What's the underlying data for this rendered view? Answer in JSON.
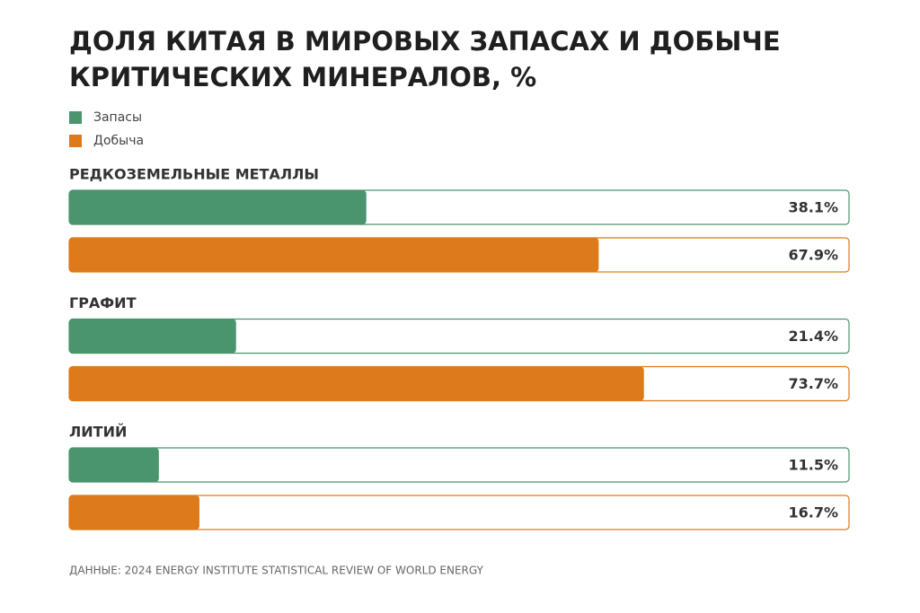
{
  "chart_data": {
    "type": "bar",
    "orientation": "horizontal",
    "title": [
      "ДОЛЯ КИТАЯ В МИРОВЫХ ЗАПАСАХ И ДОБЫЧЕ",
      "КРИТИЧЕСКИХ МИНЕРАЛОВ, %"
    ],
    "categories": [
      "РЕДКОЗЕМЕЛЬНЫЕ МЕТАЛЛЫ",
      "ГРАФИТ",
      "ЛИТИЙ"
    ],
    "series": [
      {
        "name": "Запасы",
        "color": "#4a946e",
        "values": [
          38.1,
          21.4,
          11.5
        ],
        "value_labels": [
          "38.1%",
          "21.4%",
          "11.5%"
        ]
      },
      {
        "name": "Добыча",
        "color": "#dc7a1c",
        "values": [
          67.9,
          73.7,
          16.7
        ],
        "value_labels": [
          "67.9%",
          "73.7%",
          "16.7%"
        ]
      }
    ],
    "xlim": [
      0,
      100
    ],
    "source": "ДАННЫЕ: 2024 ENERGY INSTITUTE STATISTICAL REVIEW OF WORLD ENERGY"
  }
}
